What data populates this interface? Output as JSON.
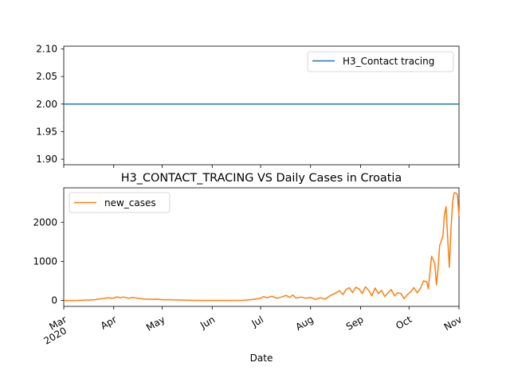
{
  "chart_data": [
    {
      "type": "line",
      "title": "",
      "xlabel": "",
      "ylabel": "",
      "ylim": [
        1.89,
        2.105
      ],
      "yticks": [
        "1.90",
        "1.95",
        "2.00",
        "2.05",
        "2.10"
      ],
      "ytick_values": [
        1.9,
        1.95,
        2.0,
        2.05,
        2.1
      ],
      "grid": false,
      "legend_position": "upper-right",
      "series": [
        {
          "name": "H3_Contact tracing",
          "color": "#1f77b4",
          "x": [
            "2020-03-01",
            "2020-11-01"
          ],
          "y": [
            2.0,
            2.0
          ]
        }
      ]
    },
    {
      "type": "line",
      "title": "H3_CONTACT_TRACING VS Daily Cases in Croatia",
      "xlabel": "Date",
      "ylabel": "",
      "ylim": [
        -150,
        2880
      ],
      "yticks": [
        "0",
        "1000",
        "2000"
      ],
      "ytick_values": [
        0,
        1000,
        2000
      ],
      "xlim": [
        "2020-03-01",
        "2020-11-01"
      ],
      "xticks": [
        {
          "date": "2020-03-01",
          "label": "Mar",
          "sub": "2020"
        },
        {
          "date": "2020-04-01",
          "label": "Apr",
          "sub": ""
        },
        {
          "date": "2020-05-01",
          "label": "May",
          "sub": ""
        },
        {
          "date": "2020-06-01",
          "label": "Jun",
          "sub": ""
        },
        {
          "date": "2020-07-01",
          "label": "Jul",
          "sub": ""
        },
        {
          "date": "2020-08-01",
          "label": "Aug",
          "sub": ""
        },
        {
          "date": "2020-09-01",
          "label": "Sep",
          "sub": ""
        },
        {
          "date": "2020-10-01",
          "label": "Oct",
          "sub": ""
        },
        {
          "date": "2020-11-01",
          "label": "Nov",
          "sub": ""
        }
      ],
      "grid": false,
      "legend_position": "upper-left",
      "series": [
        {
          "name": "new_cases",
          "color": "#ff7f0e",
          "x": [
            "2020-03-01",
            "2020-03-10",
            "2020-03-20",
            "2020-03-25",
            "2020-03-28",
            "2020-04-01",
            "2020-04-03",
            "2020-04-05",
            "2020-04-07",
            "2020-04-10",
            "2020-04-13",
            "2020-04-16",
            "2020-04-20",
            "2020-04-24",
            "2020-04-28",
            "2020-05-01",
            "2020-05-05",
            "2020-05-10",
            "2020-05-15",
            "2020-05-20",
            "2020-06-01",
            "2020-06-10",
            "2020-06-20",
            "2020-06-25",
            "2020-06-28",
            "2020-07-01",
            "2020-07-03",
            "2020-07-05",
            "2020-07-08",
            "2020-07-11",
            "2020-07-14",
            "2020-07-17",
            "2020-07-19",
            "2020-07-21",
            "2020-07-23",
            "2020-07-26",
            "2020-07-29",
            "2020-08-01",
            "2020-08-04",
            "2020-08-07",
            "2020-08-10",
            "2020-08-13",
            "2020-08-16",
            "2020-08-19",
            "2020-08-21",
            "2020-08-23",
            "2020-08-25",
            "2020-08-27",
            "2020-08-29",
            "2020-08-31",
            "2020-09-02",
            "2020-09-04",
            "2020-09-06",
            "2020-09-08",
            "2020-09-10",
            "2020-09-12",
            "2020-09-14",
            "2020-09-16",
            "2020-09-18",
            "2020-09-20",
            "2020-09-22",
            "2020-09-24",
            "2020-09-26",
            "2020-09-28",
            "2020-09-30",
            "2020-10-02",
            "2020-10-04",
            "2020-10-06",
            "2020-10-08",
            "2020-10-10",
            "2020-10-12",
            "2020-10-13",
            "2020-10-15",
            "2020-10-17",
            "2020-10-18",
            "2020-10-19",
            "2020-10-20",
            "2020-10-22",
            "2020-10-23",
            "2020-10-24",
            "2020-10-25",
            "2020-10-26",
            "2020-10-27",
            "2020-10-28",
            "2020-10-29",
            "2020-10-30",
            "2020-10-31",
            "2020-11-01"
          ],
          "y": [
            0,
            3,
            20,
            50,
            70,
            60,
            95,
            70,
            90,
            60,
            80,
            55,
            40,
            30,
            35,
            20,
            20,
            15,
            10,
            5,
            3,
            2,
            5,
            20,
            40,
            60,
            100,
            70,
            110,
            60,
            90,
            130,
            80,
            140,
            60,
            90,
            60,
            80,
            30,
            70,
            40,
            120,
            180,
            250,
            150,
            280,
            330,
            200,
            340,
            300,
            180,
            350,
            260,
            120,
            320,
            180,
            260,
            100,
            200,
            280,
            120,
            200,
            180,
            50,
            150,
            220,
            330,
            200,
            300,
            500,
            480,
            300,
            1130,
            950,
            400,
            800,
            1400,
            1650,
            2200,
            2400,
            1580,
            850,
            1800,
            2500,
            2750,
            2750,
            2700,
            2150
          ]
        }
      ]
    }
  ]
}
